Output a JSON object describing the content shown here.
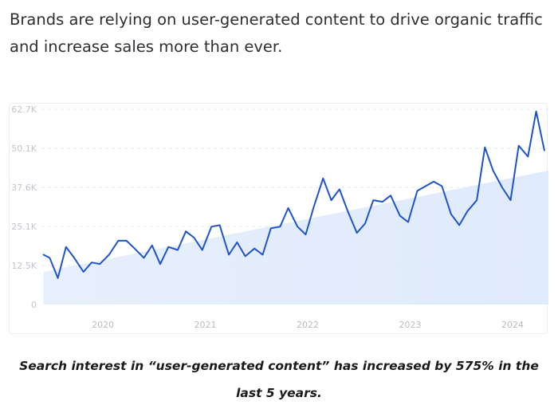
{
  "intro": {
    "text": "Brands are relying on user-generated content to drive organic traffic and increase sales more than ever."
  },
  "caption": {
    "text": "Search interest in “user-generated content” has increased by 575% in the last 5 years."
  },
  "colors": {
    "line": "#1f54c9",
    "trend_fill": "#dfeafb",
    "grid": "#e6e8eb"
  },
  "chart_data": {
    "type": "line",
    "title": "",
    "xlabel": "",
    "ylabel": "",
    "ylim": [
      0,
      62700
    ],
    "y_ticks": [
      0,
      12500,
      25100,
      37600,
      50100,
      62700
    ],
    "y_tick_labels": [
      "0",
      "12.5K",
      "25.1K",
      "37.6K",
      "50.1K",
      "62.7K"
    ],
    "x_ticks": [
      2020,
      2021,
      2022,
      2023,
      2024
    ],
    "x_tick_labels": [
      "2020",
      "2021",
      "2022",
      "2023",
      "2024"
    ],
    "xlim": [
      2019.4,
      2024.35
    ],
    "grid": true,
    "legend": "none",
    "series": [
      {
        "x": [
          2019.42,
          2019.48,
          2019.56,
          2019.64,
          2019.72,
          2019.81,
          2019.89,
          2019.97,
          2020.06,
          2020.15,
          2020.23,
          2020.31,
          2020.4,
          2020.48,
          2020.56,
          2020.64,
          2020.73,
          2020.81,
          2020.89,
          2020.97,
          2021.06,
          2021.14,
          2021.23,
          2021.31,
          2021.39,
          2021.48,
          2021.56,
          2021.64,
          2021.73,
          2021.81,
          2021.9,
          2021.98,
          2022.06,
          2022.15,
          2022.23,
          2022.31,
          2022.39,
          2022.48,
          2022.56,
          2022.64,
          2022.73,
          2022.81,
          2022.9,
          2022.98,
          2023.07,
          2023.15,
          2023.23,
          2023.31,
          2023.4,
          2023.48,
          2023.56,
          2023.65,
          2023.73,
          2023.81,
          2023.9,
          2023.98,
          2024.06,
          2024.15,
          2024.23,
          2024.31
        ],
        "values": [
          16000,
          15000,
          8500,
          18500,
          15000,
          10500,
          13500,
          13000,
          16000,
          20500,
          20500,
          18000,
          15000,
          19000,
          13000,
          18500,
          17500,
          23500,
          21500,
          17500,
          25000,
          25500,
          16000,
          20000,
          15500,
          18000,
          16000,
          24500,
          25000,
          31000,
          25000,
          22500,
          31500,
          40500,
          33500,
          37000,
          30000,
          23000,
          26000,
          33500,
          33000,
          35000,
          28500,
          26500,
          36500,
          38000,
          39500,
          38000,
          29000,
          25500,
          30000,
          33500,
          50500,
          43000,
          37500,
          33500,
          51000,
          47500,
          62000,
          49500
        ]
      }
    ],
    "trend": {
      "x": [
        2019.42,
        2024.35
      ],
      "values": [
        10500,
        43000
      ]
    }
  }
}
